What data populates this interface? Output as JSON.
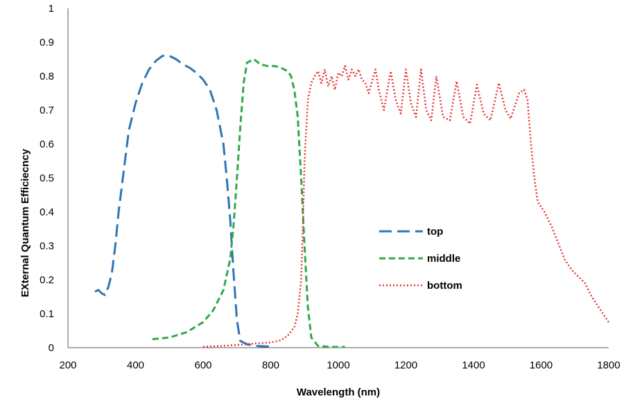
{
  "chart_data": {
    "type": "line",
    "xlabel": "Wavelength (nm)",
    "ylabel": "EXternal Quantum Efficiecncy",
    "xlim": [
      200,
      1800
    ],
    "ylim": [
      0,
      1
    ],
    "x_ticks": [
      200,
      400,
      600,
      800,
      1000,
      1200,
      1400,
      1600,
      1800
    ],
    "y_ticks": [
      0,
      0.1,
      0.2,
      0.3,
      0.4,
      0.5,
      0.6,
      0.7,
      0.8,
      0.9,
      1
    ],
    "grid": false,
    "legend": "center-right",
    "series": [
      {
        "name": "top",
        "color": "#2E75B6",
        "dash": "long-dash",
        "points": [
          [
            280,
            0.165
          ],
          [
            290,
            0.17
          ],
          [
            300,
            0.16
          ],
          [
            310,
            0.155
          ],
          [
            320,
            0.18
          ],
          [
            330,
            0.22
          ],
          [
            340,
            0.3
          ],
          [
            350,
            0.4
          ],
          [
            360,
            0.48
          ],
          [
            370,
            0.56
          ],
          [
            380,
            0.64
          ],
          [
            400,
            0.72
          ],
          [
            420,
            0.78
          ],
          [
            440,
            0.82
          ],
          [
            460,
            0.845
          ],
          [
            480,
            0.86
          ],
          [
            500,
            0.86
          ],
          [
            520,
            0.85
          ],
          [
            540,
            0.835
          ],
          [
            560,
            0.825
          ],
          [
            580,
            0.81
          ],
          [
            600,
            0.79
          ],
          [
            620,
            0.76
          ],
          [
            640,
            0.7
          ],
          [
            660,
            0.6
          ],
          [
            670,
            0.5
          ],
          [
            680,
            0.38
          ],
          [
            690,
            0.22
          ],
          [
            700,
            0.08
          ],
          [
            710,
            0.02
          ],
          [
            730,
            0.01
          ],
          [
            760,
            0.005
          ],
          [
            800,
            0.003
          ]
        ]
      },
      {
        "name": "middle",
        "color": "#2EAA4A",
        "dash": "short-dash",
        "points": [
          [
            450,
            0.025
          ],
          [
            500,
            0.03
          ],
          [
            550,
            0.045
          ],
          [
            600,
            0.075
          ],
          [
            630,
            0.11
          ],
          [
            660,
            0.17
          ],
          [
            680,
            0.26
          ],
          [
            690,
            0.36
          ],
          [
            700,
            0.5
          ],
          [
            710,
            0.65
          ],
          [
            720,
            0.78
          ],
          [
            730,
            0.84
          ],
          [
            750,
            0.85
          ],
          [
            770,
            0.835
          ],
          [
            790,
            0.83
          ],
          [
            810,
            0.83
          ],
          [
            830,
            0.825
          ],
          [
            850,
            0.815
          ],
          [
            860,
            0.8
          ],
          [
            870,
            0.76
          ],
          [
            880,
            0.68
          ],
          [
            890,
            0.5
          ],
          [
            900,
            0.3
          ],
          [
            910,
            0.12
          ],
          [
            920,
            0.03
          ],
          [
            940,
            0.005
          ],
          [
            980,
            0.002
          ],
          [
            1020,
            0.002
          ]
        ]
      },
      {
        "name": "bottom",
        "color": "#E8302E",
        "dash": "dotted",
        "points": [
          [
            600,
            0.003
          ],
          [
            650,
            0.005
          ],
          [
            700,
            0.008
          ],
          [
            750,
            0.012
          ],
          [
            800,
            0.015
          ],
          [
            830,
            0.022
          ],
          [
            850,
            0.035
          ],
          [
            870,
            0.06
          ],
          [
            880,
            0.1
          ],
          [
            890,
            0.2
          ],
          [
            895,
            0.35
          ],
          [
            900,
            0.55
          ],
          [
            910,
            0.73
          ],
          [
            920,
            0.78
          ],
          [
            930,
            0.8
          ],
          [
            940,
            0.815
          ],
          [
            950,
            0.78
          ],
          [
            960,
            0.82
          ],
          [
            970,
            0.77
          ],
          [
            980,
            0.8
          ],
          [
            990,
            0.76
          ],
          [
            1000,
            0.81
          ],
          [
            1010,
            0.8
          ],
          [
            1020,
            0.83
          ],
          [
            1030,
            0.79
          ],
          [
            1040,
            0.82
          ],
          [
            1050,
            0.8
          ],
          [
            1060,
            0.82
          ],
          [
            1070,
            0.79
          ],
          [
            1080,
            0.78
          ],
          [
            1090,
            0.75
          ],
          [
            1110,
            0.82
          ],
          [
            1120,
            0.76
          ],
          [
            1135,
            0.7
          ],
          [
            1155,
            0.815
          ],
          [
            1170,
            0.73
          ],
          [
            1185,
            0.69
          ],
          [
            1200,
            0.82
          ],
          [
            1215,
            0.72
          ],
          [
            1230,
            0.68
          ],
          [
            1245,
            0.82
          ],
          [
            1260,
            0.7
          ],
          [
            1275,
            0.67
          ],
          [
            1290,
            0.8
          ],
          [
            1310,
            0.68
          ],
          [
            1330,
            0.67
          ],
          [
            1350,
            0.785
          ],
          [
            1370,
            0.68
          ],
          [
            1390,
            0.66
          ],
          [
            1410,
            0.775
          ],
          [
            1430,
            0.69
          ],
          [
            1450,
            0.67
          ],
          [
            1475,
            0.78
          ],
          [
            1495,
            0.7
          ],
          [
            1510,
            0.675
          ],
          [
            1535,
            0.75
          ],
          [
            1550,
            0.76
          ],
          [
            1560,
            0.73
          ],
          [
            1570,
            0.6
          ],
          [
            1580,
            0.5
          ],
          [
            1590,
            0.43
          ],
          [
            1610,
            0.4
          ],
          [
            1630,
            0.36
          ],
          [
            1650,
            0.31
          ],
          [
            1670,
            0.26
          ],
          [
            1690,
            0.23
          ],
          [
            1710,
            0.21
          ],
          [
            1730,
            0.19
          ],
          [
            1750,
            0.15
          ],
          [
            1770,
            0.12
          ],
          [
            1790,
            0.09
          ],
          [
            1800,
            0.075
          ]
        ]
      }
    ]
  }
}
